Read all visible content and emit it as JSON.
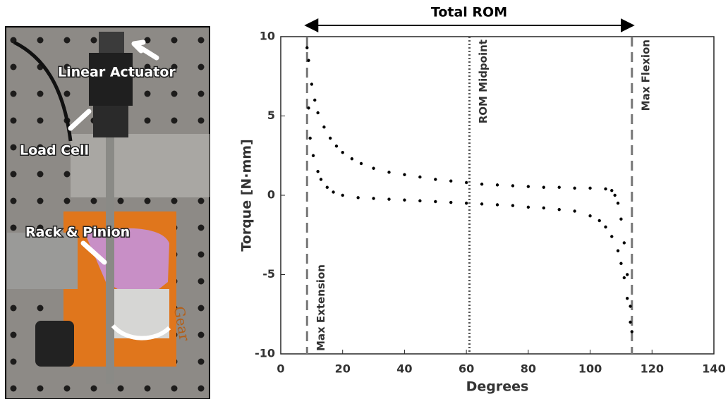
{
  "photo": {
    "labels": [
      "Linear Actuator",
      "Load Cell",
      "Rack & Pinion",
      "Gear"
    ]
  },
  "chart_data": {
    "type": "scatter",
    "title": "Total ROM",
    "xlabel": "Degrees",
    "ylabel": "Torque [N·mm]",
    "xlim": [
      0,
      140
    ],
    "ylim": [
      -10,
      10
    ],
    "xticks": [
      0,
      20,
      40,
      60,
      80,
      100,
      120,
      140
    ],
    "yticks": [
      -10,
      -5,
      0,
      5,
      10
    ],
    "reference_lines": [
      {
        "label": "Max Extension",
        "x": 8.5,
        "style": "dashed",
        "anchor": "bottom"
      },
      {
        "label": "ROM Midpoint",
        "x": 61,
        "style": "dotted",
        "anchor": "top"
      },
      {
        "label": "Max Flexion",
        "x": 113.5,
        "style": "dashed",
        "anchor": "top"
      }
    ],
    "series": [
      {
        "color": "#000000",
        "x": [
          8.5,
          9,
          10,
          11,
          12,
          14,
          16,
          18,
          20,
          23,
          26,
          30,
          35,
          40,
          45,
          50,
          55,
          60,
          65,
          70,
          75,
          80,
          85,
          90,
          95,
          100,
          105,
          107,
          108,
          109,
          110,
          111,
          112,
          113
        ],
        "values": [
          9.3,
          8.5,
          7,
          6,
          5.2,
          4.3,
          3.6,
          3.1,
          2.7,
          2.3,
          2.0,
          1.7,
          1.45,
          1.3,
          1.15,
          1.0,
          0.9,
          0.8,
          0.7,
          0.65,
          0.6,
          0.55,
          0.5,
          0.5,
          0.45,
          0.45,
          0.4,
          0.3,
          0.0,
          -0.5,
          -1.5,
          -3,
          -5,
          -7
        ]
      },
      {
        "color": "#000000",
        "x": [
          9,
          9.5,
          10.5,
          12,
          13,
          15,
          17,
          20,
          25,
          30,
          35,
          40,
          45,
          50,
          55,
          60,
          65,
          70,
          75,
          80,
          85,
          90,
          95,
          100,
          103,
          105,
          107,
          109,
          110,
          111,
          112,
          113,
          113.5
        ],
        "values": [
          5.5,
          3.6,
          2.5,
          1.5,
          1.0,
          0.5,
          0.2,
          0.0,
          -0.15,
          -0.2,
          -0.25,
          -0.3,
          -0.35,
          -0.4,
          -0.45,
          -0.5,
          -0.55,
          -0.6,
          -0.65,
          -0.75,
          -0.8,
          -0.9,
          -1.0,
          -1.3,
          -1.6,
          -2.0,
          -2.6,
          -3.5,
          -4.3,
          -5.2,
          -6.5,
          -8.0,
          -8.6
        ]
      }
    ],
    "grid": false
  }
}
